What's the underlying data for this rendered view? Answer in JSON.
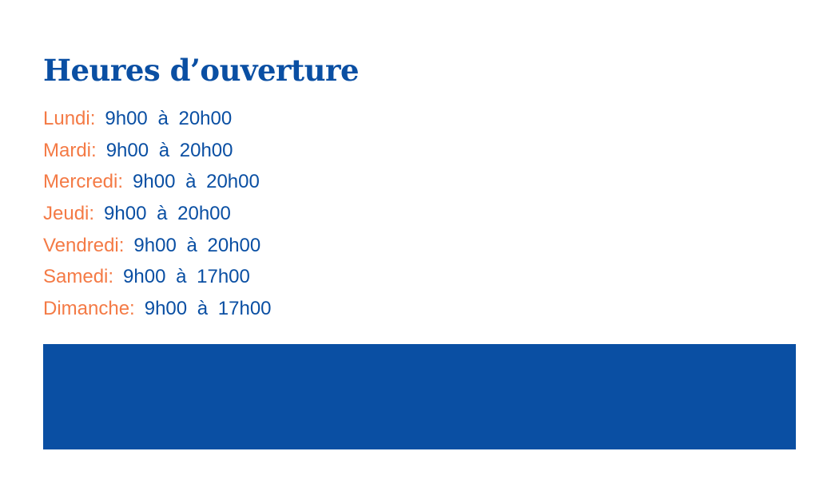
{
  "title": "Heures d’ouverture",
  "hours": [
    {
      "day": "Lundi:",
      "time": "9h00 à 20h00"
    },
    {
      "day": "Mardi:",
      "time": "9h00 à 20h00"
    },
    {
      "day": "Mercredi:",
      "time": "9h00 à 20h00"
    },
    {
      "day": "Jeudi:",
      "time": "9h00 à 20h00"
    },
    {
      "day": "Vendredi:",
      "time": "9h00 à 20h00"
    },
    {
      "day": "Samedi:",
      "time": "9h00 à 17h00"
    },
    {
      "day": "Dimanche:",
      "time": "9h00 à 17h00"
    }
  ],
  "colors": {
    "primary": "#0a4fa3",
    "accent": "#f47a45"
  }
}
